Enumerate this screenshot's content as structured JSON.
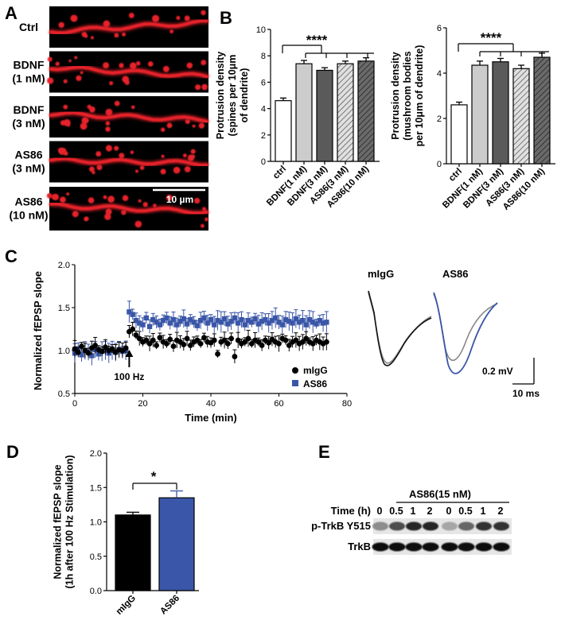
{
  "panels": {
    "A": {
      "letter": "A",
      "rows": [
        {
          "line1": "Ctrl",
          "line2": ""
        },
        {
          "line1": "BDNF",
          "line2": "(1 nM)"
        },
        {
          "line1": "BDNF",
          "line2": "(3 nM)"
        },
        {
          "line1": "AS86",
          "line2": "(3 nM)"
        },
        {
          "line1": "AS86",
          "line2": "(10 nM)"
        }
      ],
      "scale_bar_label": "10 µm",
      "image_color": "#e8232a"
    },
    "B": {
      "letter": "B"
    },
    "C": {
      "letter": "C",
      "stim_label": "100 Hz",
      "traces": {
        "label_migg": "mIgG",
        "label_as86": "AS86",
        "scale_v": "0.2 mV",
        "scale_t": "10 ms"
      }
    },
    "D": {
      "letter": "D"
    },
    "E": {
      "letter": "E",
      "treatment": "AS86(15 nM)",
      "time_label": "Time (h)",
      "times": [
        "0",
        "0.5",
        "1",
        "2",
        "0",
        "0.5",
        "1",
        "2"
      ],
      "blot_labels": [
        "p-TrkB Y515",
        "TrkB"
      ],
      "p_intensity": [
        0.45,
        0.7,
        0.85,
        0.85,
        0.35,
        0.6,
        0.8,
        0.8
      ],
      "t_intensity": [
        0.95,
        0.95,
        0.95,
        0.95,
        0.95,
        0.95,
        0.95,
        0.95
      ]
    }
  },
  "colors": {
    "blue": "#3a56a8",
    "dark_bar": "#5a5a5a",
    "light_bar": "#cccccc",
    "black": "#000000"
  },
  "chart_data": [
    {
      "id": "B1",
      "type": "bar",
      "title": "",
      "ylabel_lines": [
        "Protrusion density",
        "(spines per 10μm",
        "of dendrite)"
      ],
      "categories": [
        "ctrl",
        "BDNF(1 nM)",
        "BDNF(3 nM)",
        "AS86(3 nM)",
        "AS86(10 nM)"
      ],
      "values": [
        4.6,
        7.4,
        6.9,
        7.4,
        7.6
      ],
      "errors": [
        0.2,
        0.25,
        0.2,
        0.2,
        0.25
      ],
      "ylim": [
        0,
        10
      ],
      "yticks": [
        0,
        2,
        4,
        6,
        8,
        10
      ],
      "significance": "****"
    },
    {
      "id": "B2",
      "type": "bar",
      "title": "",
      "ylabel_lines": [
        "Protrusion density",
        "(mushroom bodies",
        "per 10μm of dendrite)"
      ],
      "categories": [
        "ctrl",
        "BDNF(1 nM)",
        "BDNF(3 nM)",
        "AS86(3 nM)",
        "AS86(10 nM)"
      ],
      "values": [
        2.6,
        4.35,
        4.5,
        4.2,
        4.7
      ],
      "errors": [
        0.12,
        0.18,
        0.15,
        0.15,
        0.18
      ],
      "ylim": [
        0,
        6
      ],
      "yticks": [
        0,
        2,
        4,
        6
      ],
      "significance": "****"
    },
    {
      "id": "C",
      "type": "scatter",
      "ylabel": "Normalized fEPSP slope",
      "xlabel": "Time (min)",
      "xlim": [
        0,
        80
      ],
      "ylim": [
        0.5,
        2.0
      ],
      "xticks": [
        0,
        20,
        40,
        60,
        80
      ],
      "yticks": [
        0.5,
        1.0,
        1.5,
        2.0
      ],
      "stim_time": 16,
      "legend": [
        "mIgG",
        "AS86"
      ],
      "series": [
        {
          "name": "mIgG",
          "x": [
            0,
            1,
            2,
            3,
            4,
            5,
            6,
            7,
            8,
            9,
            10,
            11,
            12,
            13,
            14,
            15,
            16,
            17,
            18,
            19,
            20,
            21,
            22,
            23,
            24,
            25,
            26,
            27,
            28,
            29,
            30,
            31,
            32,
            33,
            34,
            35,
            36,
            37,
            38,
            39,
            40,
            41,
            42,
            43,
            44,
            45,
            46,
            47,
            48,
            49,
            50,
            51,
            52,
            53,
            54,
            55,
            56,
            57,
            58,
            59,
            60,
            61,
            62,
            63,
            64,
            65,
            66,
            67,
            68,
            69,
            70,
            71,
            72,
            73,
            74
          ],
          "y": [
            1.02,
            0.98,
            1.05,
            1.0,
            0.97,
            1.03,
            1.06,
            1.01,
            0.99,
            1.04,
            1.0,
            1.02,
            0.98,
            1.01,
            1.0,
            1.03,
            1.22,
            1.25,
            1.18,
            1.14,
            1.1,
            1.12,
            1.08,
            1.12,
            1.06,
            1.15,
            1.1,
            1.08,
            1.13,
            1.05,
            1.12,
            1.1,
            1.07,
            1.14,
            1.06,
            1.1,
            1.12,
            1.08,
            1.15,
            1.1,
            1.09,
            1.12,
            0.96,
            1.1,
            1.12,
            1.08,
            1.14,
            0.93,
            1.12,
            1.08,
            1.1,
            1.14,
            1.08,
            1.12,
            1.1,
            1.06,
            1.12,
            1.09,
            1.13,
            1.1,
            1.08,
            1.14,
            1.12,
            1.06,
            1.1,
            1.12,
            1.08,
            1.1,
            1.14,
            1.1,
            1.08,
            1.12,
            1.1,
            1.08,
            1.1
          ],
          "err": 0.07
        },
        {
          "name": "AS86",
          "x": [
            0,
            1,
            2,
            3,
            4,
            5,
            6,
            7,
            8,
            9,
            10,
            11,
            12,
            13,
            14,
            15,
            16,
            17,
            18,
            19,
            20,
            21,
            22,
            23,
            24,
            25,
            26,
            27,
            28,
            29,
            30,
            31,
            32,
            33,
            34,
            35,
            36,
            37,
            38,
            39,
            40,
            41,
            42,
            43,
            44,
            45,
            46,
            47,
            48,
            49,
            50,
            51,
            52,
            53,
            54,
            55,
            56,
            57,
            58,
            59,
            60,
            61,
            62,
            63,
            64,
            65,
            66,
            67,
            68,
            69,
            70,
            71,
            72,
            73,
            74
          ],
          "y": [
            0.97,
            1.02,
            0.95,
            1.0,
            0.98,
            0.94,
            1.01,
            0.96,
            0.99,
            1.0,
            0.97,
            1.0,
            0.98,
            1.01,
            0.99,
            1.0,
            1.45,
            1.42,
            1.35,
            1.32,
            1.3,
            1.38,
            1.28,
            1.36,
            1.33,
            1.3,
            1.35,
            1.38,
            1.32,
            1.36,
            1.3,
            1.34,
            1.37,
            1.31,
            1.36,
            1.33,
            1.29,
            1.35,
            1.38,
            1.32,
            1.36,
            1.3,
            1.35,
            1.33,
            1.37,
            1.31,
            1.34,
            1.38,
            1.32,
            1.36,
            1.3,
            1.35,
            1.33,
            1.37,
            1.31,
            1.34,
            1.36,
            1.32,
            1.35,
            1.38,
            1.33,
            1.3,
            1.36,
            1.34,
            1.32,
            1.37,
            1.33,
            1.35,
            1.3,
            1.36,
            1.33,
            1.31,
            1.35,
            1.32,
            1.33
          ],
          "err": 0.09
        }
      ]
    },
    {
      "id": "D",
      "type": "bar",
      "ylabel_lines": [
        "Normalized fEPSP slope",
        "(1h after 100 Hz Stimulation)"
      ],
      "categories": [
        "mIgG",
        "AS86"
      ],
      "values": [
        1.1,
        1.35
      ],
      "errors": [
        0.04,
        0.1
      ],
      "ylim": [
        0,
        2.0
      ],
      "yticks": [
        0.0,
        0.5,
        1.0,
        1.5,
        2.0
      ],
      "significance": "*"
    }
  ]
}
